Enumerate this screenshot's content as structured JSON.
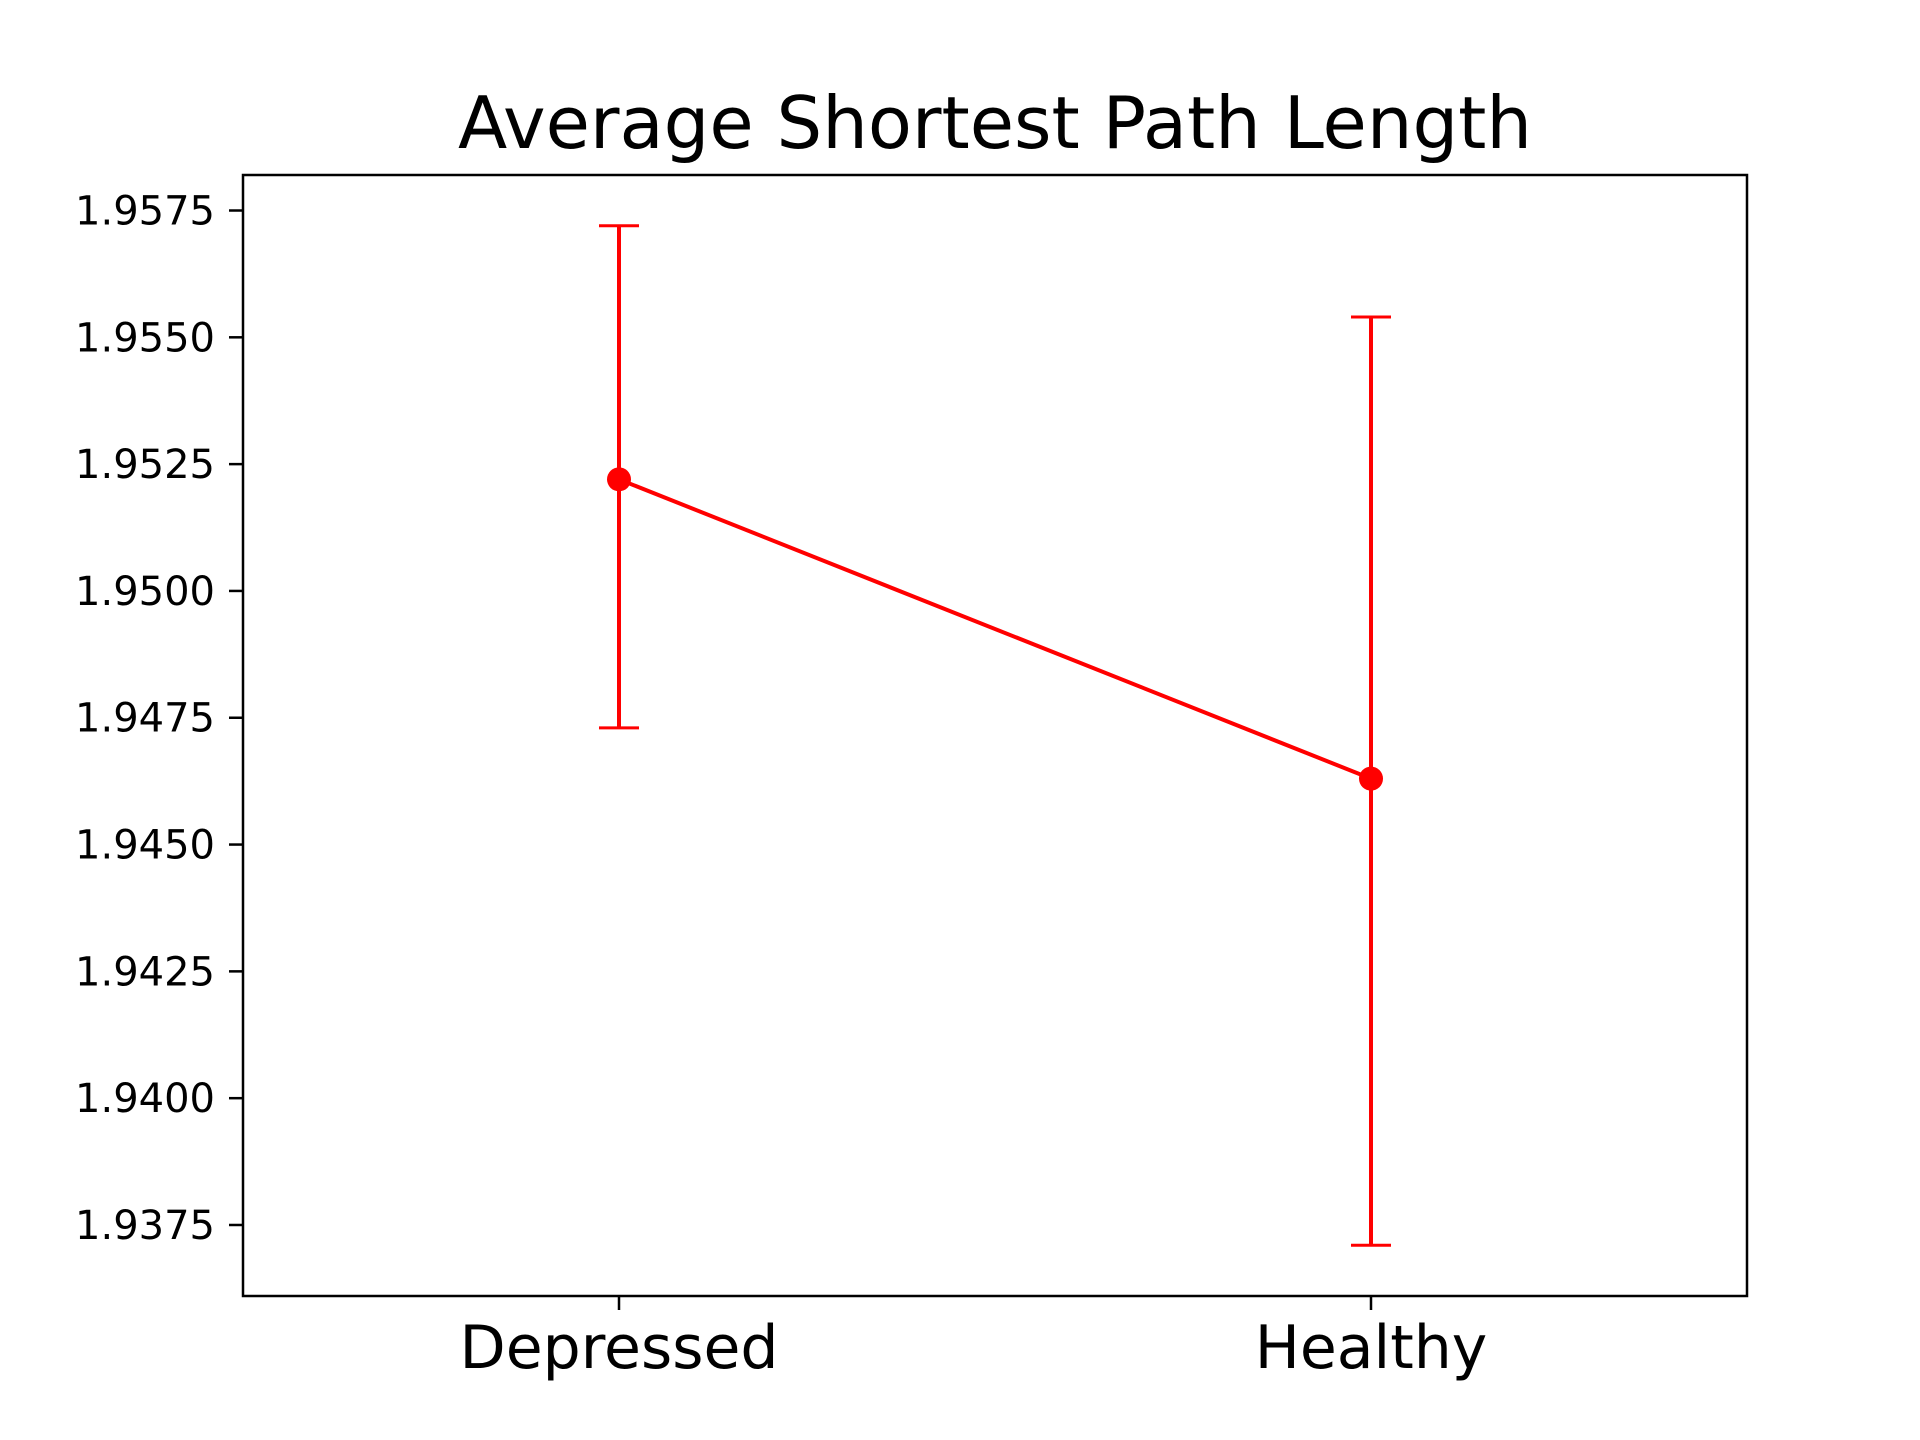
{
  "colors": {
    "series": "#ff0000",
    "axes": "#000000",
    "background": "#ffffff"
  },
  "chart_data": {
    "type": "line",
    "title": "Average Shortest Path Length",
    "xlabel": "",
    "ylabel": "",
    "categories": [
      "Depressed",
      "Healthy"
    ],
    "series": [
      {
        "values": [
          1.9522,
          1.9463
        ],
        "error_low": [
          1.9473,
          1.9371
        ],
        "error_high": [
          1.9572,
          1.9554
        ],
        "color": "#ff0000",
        "marker": "circle",
        "error_bars": true
      }
    ],
    "ylim": [
      1.9361,
      1.9582
    ],
    "yticks": [
      "1.9375",
      "1.9400",
      "1.9425",
      "1.9450",
      "1.9475",
      "1.9500",
      "1.9525",
      "1.9550",
      "1.9575"
    ],
    "grid": false,
    "legend": "none"
  }
}
